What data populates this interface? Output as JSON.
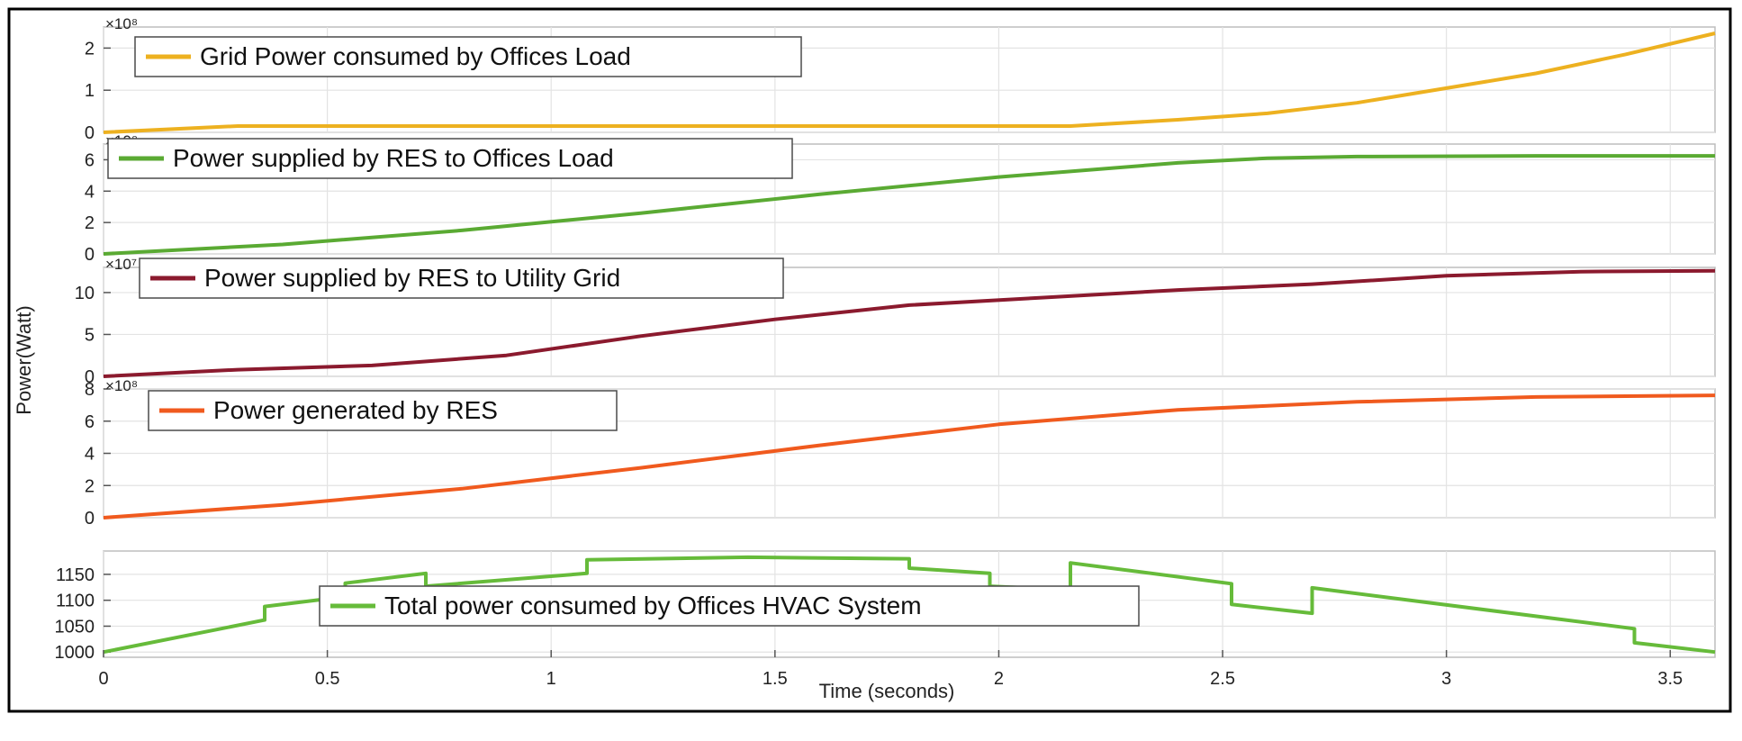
{
  "figure": {
    "ylabel": "Power(Watt)",
    "xlabel": "Time (seconds)"
  },
  "chart_data": [
    {
      "type": "line",
      "exponent": "×10⁸",
      "ylim": [
        0,
        2.5
      ],
      "yticks": [
        "0",
        "1",
        "2"
      ],
      "ytick_values": [
        0,
        1,
        2
      ],
      "grid": true,
      "legend_position": "top-left",
      "series": [
        {
          "name": "Grid Power consumed by Offices Load",
          "color": "#EDB120",
          "x": [
            0,
            0.3,
            0.6,
            1.0,
            1.4,
            1.8,
            2.16,
            2.4,
            2.6,
            2.8,
            3.0,
            3.2,
            3.4,
            3.6
          ],
          "y": [
            0,
            0.15,
            0.15,
            0.15,
            0.15,
            0.15,
            0.15,
            0.3,
            0.45,
            0.7,
            1.05,
            1.4,
            1.85,
            2.35
          ]
        }
      ]
    },
    {
      "type": "line",
      "exponent": "×10⁸",
      "ylim": [
        0,
        7
      ],
      "yticks": [
        "0",
        "2",
        "4",
        "6"
      ],
      "ytick_values": [
        0,
        2,
        4,
        6
      ],
      "grid": true,
      "legend_position": "top-left",
      "series": [
        {
          "name": "Power supplied by RES to Offices Load",
          "color": "#5AAA33",
          "x": [
            0,
            0.4,
            0.8,
            1.2,
            1.6,
            2.0,
            2.4,
            2.6,
            2.8,
            3.2,
            3.6
          ],
          "y": [
            0,
            0.6,
            1.5,
            2.6,
            3.8,
            4.9,
            5.8,
            6.1,
            6.2,
            6.25,
            6.25
          ]
        }
      ]
    },
    {
      "type": "line",
      "exponent": "×10⁷",
      "ylim": [
        0,
        13
      ],
      "yticks": [
        "0",
        "5",
        "10"
      ],
      "ytick_values": [
        0,
        5,
        10
      ],
      "grid": true,
      "legend_position": "top-left",
      "series": [
        {
          "name": "Power supplied by RES to Utility Grid",
          "color": "#8B1A2E",
          "x": [
            0,
            0.3,
            0.6,
            0.9,
            1.2,
            1.5,
            1.8,
            2.1,
            2.4,
            2.7,
            3.0,
            3.3,
            3.6
          ],
          "y": [
            0,
            0.8,
            1.3,
            2.5,
            4.8,
            6.8,
            8.5,
            9.4,
            10.3,
            11.0,
            12.0,
            12.5,
            12.6
          ]
        }
      ]
    },
    {
      "type": "line",
      "exponent": "×10⁸",
      "ylim": [
        0,
        8
      ],
      "yticks": [
        "0",
        "2",
        "4",
        "6",
        "8"
      ],
      "ytick_values": [
        0,
        2,
        4,
        6,
        8
      ],
      "grid": true,
      "legend_position": "top-left",
      "series": [
        {
          "name": "Power generated by RES",
          "color": "#F05A1E",
          "x": [
            0,
            0.4,
            0.8,
            1.2,
            1.6,
            2.0,
            2.4,
            2.8,
            3.2,
            3.6
          ],
          "y": [
            0,
            0.8,
            1.8,
            3.1,
            4.5,
            5.8,
            6.7,
            7.2,
            7.5,
            7.6
          ]
        }
      ]
    },
    {
      "type": "line",
      "ylim": [
        990,
        1195
      ],
      "yticks": [
        "1000",
        "1050",
        "1100",
        "1150"
      ],
      "ytick_values": [
        1000,
        1050,
        1100,
        1150
      ],
      "xlim": [
        0,
        3.6
      ],
      "xticks": [
        "0",
        "0.5",
        "1",
        "1.5",
        "2",
        "2.5",
        "3",
        "3.5"
      ],
      "xtick_values": [
        0,
        0.5,
        1,
        1.5,
        2,
        2.5,
        3,
        3.5
      ],
      "grid": true,
      "legend_position": "bottom-center",
      "series": [
        {
          "name": "Total power consumed by Offices HVAC System",
          "color": "#66BB3A",
          "x": [
            0,
            0.36,
            0.36,
            0.54,
            0.54,
            0.72,
            0.72,
            1.08,
            1.08,
            1.44,
            1.8,
            1.8,
            1.98,
            1.98,
            2.16,
            2.16,
            2.52,
            2.52,
            2.7,
            2.7,
            3.42,
            3.42,
            3.6
          ],
          "y": [
            1000,
            1062,
            1088,
            1107,
            1133,
            1152,
            1127,
            1152,
            1178,
            1183,
            1180,
            1162,
            1152,
            1127,
            1120,
            1172,
            1132,
            1092,
            1075,
            1124,
            1045,
            1018,
            1000
          ]
        }
      ]
    }
  ]
}
